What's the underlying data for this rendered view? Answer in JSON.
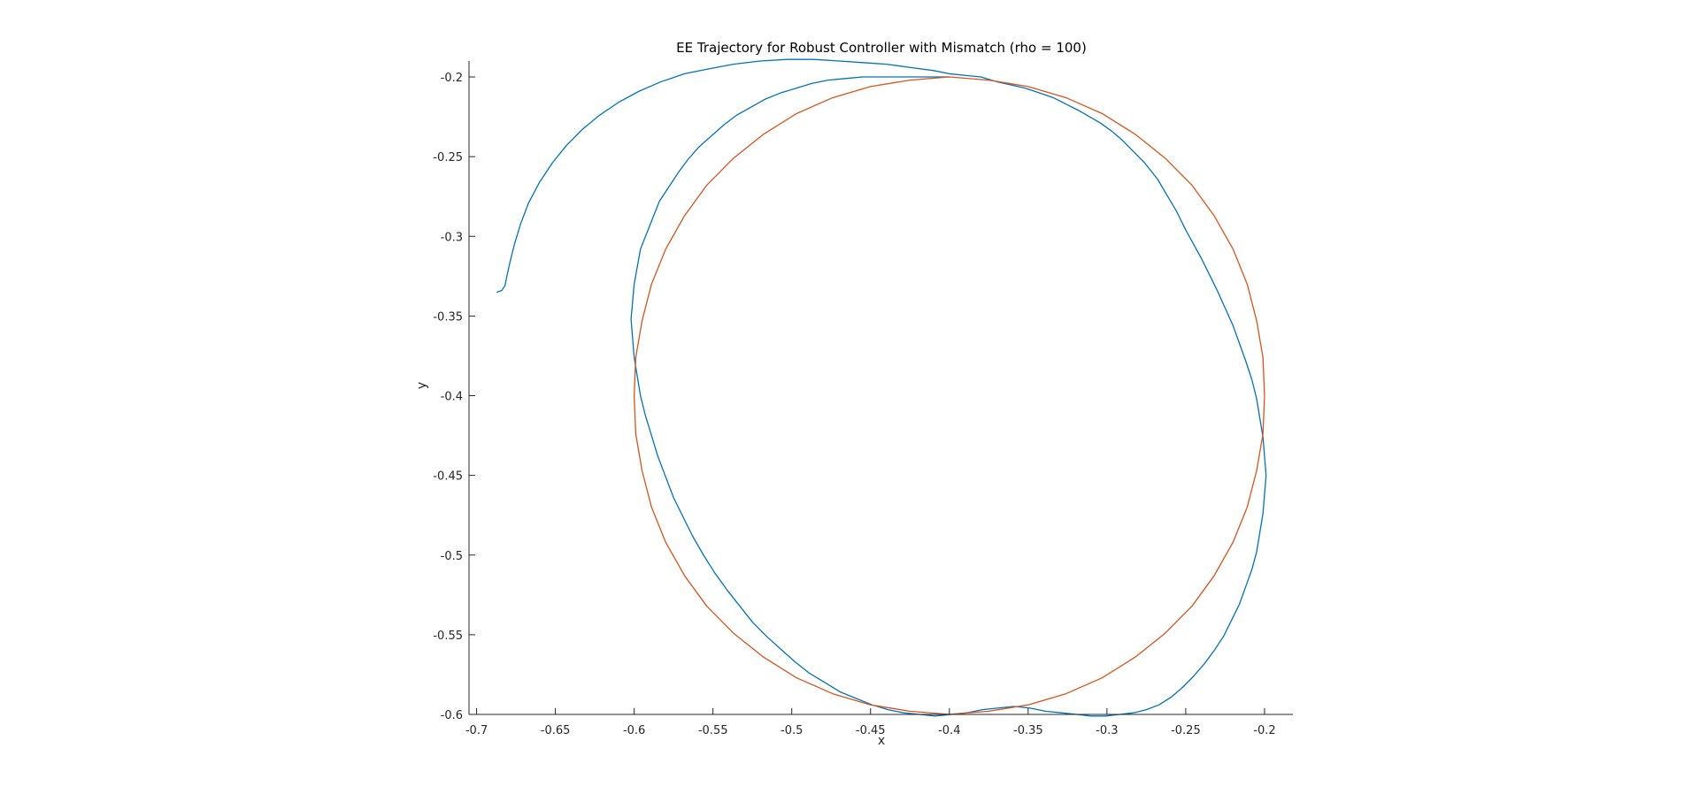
{
  "chart_data": {
    "type": "line",
    "title": "EE Trajectory for Robust Controller with Mismatch (rho = 100)",
    "xlabel": "x",
    "ylabel": "y",
    "xlim": [
      -0.702,
      -0.182
    ],
    "ylim": [
      -0.6,
      -0.19
    ],
    "xticks": [
      -0.7,
      -0.65,
      -0.6,
      -0.55,
      -0.5,
      -0.45,
      -0.4,
      -0.35,
      -0.3,
      -0.25,
      -0.2
    ],
    "xtick_labels": [
      "-0.7",
      "-0.65",
      "-0.6",
      "-0.55",
      "-0.5",
      "-0.45",
      "-0.4",
      "-0.35",
      "-0.3",
      "-0.25",
      "-0.2"
    ],
    "yticks": [
      -0.6,
      -0.55,
      -0.5,
      -0.45,
      -0.4,
      -0.35,
      -0.3,
      -0.25,
      -0.2
    ],
    "ytick_labels": [
      "-0.6",
      "-0.55",
      "-0.5",
      "-0.45",
      "-0.4",
      "-0.35",
      "-0.3",
      "-0.25",
      "-0.2"
    ],
    "grid": false,
    "legend": "none",
    "series": [
      {
        "color": "#0072BD",
        "x": [
          -0.687,
          -0.684,
          -0.682,
          -0.681,
          -0.679,
          -0.676,
          -0.672,
          -0.667,
          -0.66,
          -0.652,
          -0.643,
          -0.633,
          -0.622,
          -0.61,
          -0.597,
          -0.583,
          -0.568,
          -0.553,
          -0.537,
          -0.52,
          -0.503,
          -0.486,
          -0.47,
          -0.455,
          -0.44,
          -0.425,
          -0.41,
          -0.4,
          -0.39,
          -0.38,
          -0.37,
          -0.361,
          -0.352,
          -0.343,
          -0.334,
          -0.326,
          -0.318,
          -0.311,
          -0.304,
          -0.297,
          -0.291,
          -0.286,
          -0.281,
          -0.276,
          -0.272,
          -0.268,
          -0.265,
          -0.262,
          -0.259,
          -0.256,
          -0.253,
          -0.25,
          -0.245,
          -0.24,
          -0.235,
          -0.23,
          -0.225,
          -0.22,
          -0.216,
          -0.212,
          -0.208,
          -0.205,
          -0.203,
          -0.201,
          -0.2,
          -0.199,
          -0.2,
          -0.201,
          -0.203,
          -0.205,
          -0.208,
          -0.212,
          -0.216,
          -0.221,
          -0.226,
          -0.232,
          -0.238,
          -0.245,
          -0.252,
          -0.259,
          -0.267,
          -0.275,
          -0.283,
          -0.292,
          -0.301,
          -0.31,
          -0.319,
          -0.329,
          -0.339,
          -0.349,
          -0.359,
          -0.369,
          -0.379,
          -0.389,
          -0.399,
          -0.409,
          -0.419,
          -0.429,
          -0.439,
          -0.449,
          -0.459,
          -0.469,
          -0.479,
          -0.489,
          -0.498,
          -0.507,
          -0.516,
          -0.525,
          -0.533,
          -0.541,
          -0.549,
          -0.556,
          -0.563,
          -0.569,
          -0.575,
          -0.58,
          -0.585,
          -0.589,
          -0.593,
          -0.596,
          -0.598,
          -0.6,
          -0.601,
          -0.602,
          -0.601,
          -0.6,
          -0.598,
          -0.596,
          -0.592,
          -0.588,
          -0.584,
          -0.578,
          -0.572,
          -0.566,
          -0.559,
          -0.551,
          -0.543,
          -0.535,
          -0.526,
          -0.517,
          -0.507,
          -0.497,
          -0.487,
          -0.477,
          -0.466,
          -0.455,
          -0.444,
          -0.433,
          -0.422,
          -0.411,
          -0.4
        ],
        "y": [
          -0.335,
          -0.334,
          -0.331,
          -0.326,
          -0.317,
          -0.305,
          -0.292,
          -0.279,
          -0.266,
          -0.254,
          -0.243,
          -0.233,
          -0.224,
          -0.216,
          -0.209,
          -0.203,
          -0.198,
          -0.195,
          -0.192,
          -0.19,
          -0.189,
          -0.189,
          -0.19,
          -0.191,
          -0.192,
          -0.194,
          -0.196,
          -0.198,
          -0.199,
          -0.2,
          -0.203,
          -0.205,
          -0.207,
          -0.21,
          -0.213,
          -0.217,
          -0.221,
          -0.225,
          -0.229,
          -0.234,
          -0.239,
          -0.244,
          -0.249,
          -0.254,
          -0.259,
          -0.264,
          -0.269,
          -0.274,
          -0.279,
          -0.284,
          -0.29,
          -0.296,
          -0.305,
          -0.314,
          -0.324,
          -0.334,
          -0.345,
          -0.356,
          -0.367,
          -0.378,
          -0.39,
          -0.402,
          -0.414,
          -0.426,
          -0.438,
          -0.45,
          -0.462,
          -0.474,
          -0.486,
          -0.498,
          -0.509,
          -0.52,
          -0.531,
          -0.541,
          -0.551,
          -0.56,
          -0.568,
          -0.576,
          -0.583,
          -0.589,
          -0.594,
          -0.597,
          -0.599,
          -0.6,
          -0.601,
          -0.601,
          -0.6,
          -0.599,
          -0.598,
          -0.596,
          -0.595,
          -0.596,
          -0.597,
          -0.599,
          -0.6,
          -0.601,
          -0.6,
          -0.599,
          -0.597,
          -0.594,
          -0.59,
          -0.586,
          -0.58,
          -0.574,
          -0.567,
          -0.559,
          -0.551,
          -0.542,
          -0.532,
          -0.522,
          -0.511,
          -0.5,
          -0.488,
          -0.476,
          -0.464,
          -0.451,
          -0.438,
          -0.425,
          -0.412,
          -0.4,
          -0.388,
          -0.376,
          -0.364,
          -0.352,
          -0.341,
          -0.33,
          -0.319,
          -0.308,
          -0.298,
          -0.288,
          -0.278,
          -0.269,
          -0.26,
          -0.252,
          -0.244,
          -0.237,
          -0.23,
          -0.224,
          -0.219,
          -0.214,
          -0.21,
          -0.207,
          -0.204,
          -0.202,
          -0.201,
          -0.2,
          -0.2,
          -0.2,
          -0.2,
          -0.2,
          -0.2
        ]
      },
      {
        "color": "#D95319",
        "x": [
          -0.4,
          -0.375,
          -0.35,
          -0.326,
          -0.303,
          -0.282,
          -0.263,
          -0.246,
          -0.232,
          -0.22,
          -0.211,
          -0.205,
          -0.201,
          -0.2,
          -0.201,
          -0.205,
          -0.211,
          -0.22,
          -0.232,
          -0.246,
          -0.263,
          -0.282,
          -0.303,
          -0.326,
          -0.35,
          -0.375,
          -0.4,
          -0.425,
          -0.45,
          -0.474,
          -0.497,
          -0.518,
          -0.537,
          -0.554,
          -0.568,
          -0.58,
          -0.589,
          -0.595,
          -0.599,
          -0.6,
          -0.599,
          -0.595,
          -0.589,
          -0.58,
          -0.568,
          -0.554,
          -0.537,
          -0.518,
          -0.497,
          -0.474,
          -0.45,
          -0.425,
          -0.4
        ],
        "y": [
          -0.2,
          -0.202,
          -0.206,
          -0.213,
          -0.223,
          -0.236,
          -0.251,
          -0.268,
          -0.287,
          -0.308,
          -0.33,
          -0.353,
          -0.376,
          -0.4,
          -0.424,
          -0.447,
          -0.47,
          -0.492,
          -0.513,
          -0.532,
          -0.549,
          -0.564,
          -0.577,
          -0.587,
          -0.594,
          -0.598,
          -0.6,
          -0.598,
          -0.594,
          -0.587,
          -0.577,
          -0.564,
          -0.549,
          -0.532,
          -0.513,
          -0.492,
          -0.47,
          -0.447,
          -0.424,
          -0.4,
          -0.376,
          -0.353,
          -0.33,
          -0.308,
          -0.287,
          -0.268,
          -0.251,
          -0.236,
          -0.223,
          -0.213,
          -0.206,
          -0.202,
          -0.2
        ]
      }
    ]
  }
}
